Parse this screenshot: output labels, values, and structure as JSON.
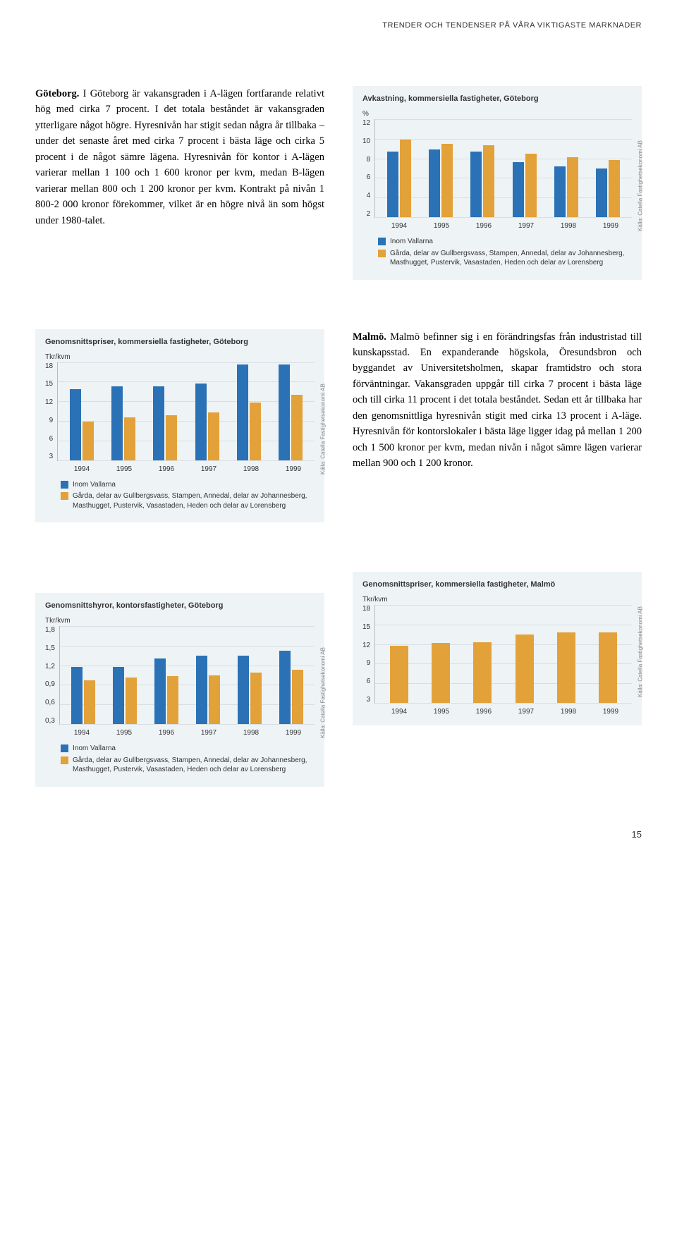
{
  "header": "TRENDER OCH TENDENSER PÅ VÅRA VIKTIGASTE MARKNADER",
  "page_number": "15",
  "source_label": "Källa: Catella Fastighetsekonomi AB",
  "text_block_1": {
    "lead": "Göteborg.",
    "body": " I Göteborg är vakansgraden i A-lägen fortfarande relativt hög med cirka 7 procent. I det totala beståndet är vakansgraden ytterligare något högre. Hyresnivån har stigit sedan några år tillbaka – under det senaste året med cirka 7 procent i bästa läge och cirka 5 procent i de något sämre lägena. Hyresnivån för kontor i A-lägen varierar mellan 1 100 och 1 600 kronor per kvm, medan B-lägen varierar mellan 800 och 1 200 kronor per kvm. Kontrakt på nivån 1 800-2 000 kronor förekommer, vilket är en högre nivå än som högst under 1980-talet."
  },
  "text_block_2": {
    "lead": "Malmö.",
    "body": " Malmö befinner sig i en förändringsfas från industristad till kunskapsstad. En expanderande högskola, Öresundsbron och byggandet av Universitetsholmen, skapar framtidstro och stora förväntningar. Vakansgraden uppgår till cirka 7 procent i bästa läge och till cirka 11 procent i det totala beståndet. Sedan ett år tillbaka har den genomsnittliga hyresnivån stigit med cirka 13 procent i A-läge. Hyresnivån för kontorslokaler i bästa läge ligger idag på mellan 1 200 och 1 500 kronor per kvm, medan nivån i något sämre lägen varierar mellan 900 och 1 200 kronor."
  },
  "legend_labels": {
    "inom": "Inom Vallarna",
    "garda": "Gårda, delar av Gullbergsvass, Stampen, Annedal, delar av Johannesberg, Masthugget, Pustervik, Vasastaden, Heden och delar av Lorensberg"
  },
  "colors": {
    "series_a": "#2a72b5",
    "series_b": "#e3a139",
    "chart_bg": "#eef3f6",
    "grid": "#d8dfe4"
  },
  "chart_avkastning": {
    "title": "Avkastning, kommersiella fastigheter, Göteborg",
    "ylabel": "%",
    "ymax": 12,
    "yticks": [
      "12",
      "10",
      "8",
      "6",
      "4",
      "2"
    ],
    "categories": [
      "1994",
      "1995",
      "1996",
      "1997",
      "1998",
      "1999"
    ],
    "series_a": [
      8.0,
      8.3,
      8.0,
      6.7,
      6.2,
      6.0
    ],
    "series_b": [
      9.5,
      9.0,
      8.8,
      7.8,
      7.3,
      7.0
    ]
  },
  "chart_priser_gbg": {
    "title": "Genomsnittspriser, kommersiella fastigheter, Göteborg",
    "ylabel": "Tkr/kvm",
    "ymax": 18,
    "yticks": [
      "18",
      "15",
      "12",
      "9",
      "6",
      "3"
    ],
    "categories": [
      "1994",
      "1995",
      "1996",
      "1997",
      "1998",
      "1999"
    ],
    "series_a": [
      13.0,
      13.5,
      13.5,
      14.0,
      17.5,
      17.5
    ],
    "series_b": [
      7.0,
      7.8,
      8.2,
      8.8,
      10.5,
      12.0
    ]
  },
  "chart_hyror_gbg": {
    "title": "Genomsnittshyror, kontorsfastigheter, Göteborg",
    "ylabel": "Tkr/kvm",
    "ymax": 1.8,
    "yticks": [
      "1,8",
      "1,5",
      "1,2",
      "0,9",
      "0,6",
      "0,3"
    ],
    "categories": [
      "1994",
      "1995",
      "1996",
      "1997",
      "1998",
      "1999"
    ],
    "series_a": [
      1.05,
      1.05,
      1.2,
      1.25,
      1.25,
      1.35
    ],
    "series_b": [
      0.8,
      0.85,
      0.88,
      0.9,
      0.95,
      1.0
    ]
  },
  "chart_priser_malmo": {
    "title": "Genomsnittspriser, kommersiella fastigheter, Malmö",
    "ylabel": "Tkr/kvm",
    "ymax": 18,
    "yticks": [
      "18",
      "15",
      "12",
      "9",
      "6",
      "3"
    ],
    "categories": [
      "1994",
      "1995",
      "1996",
      "1997",
      "1998",
      "1999"
    ],
    "series_b": [
      10.5,
      11.0,
      11.2,
      12.5,
      13.0,
      13.0
    ]
  }
}
